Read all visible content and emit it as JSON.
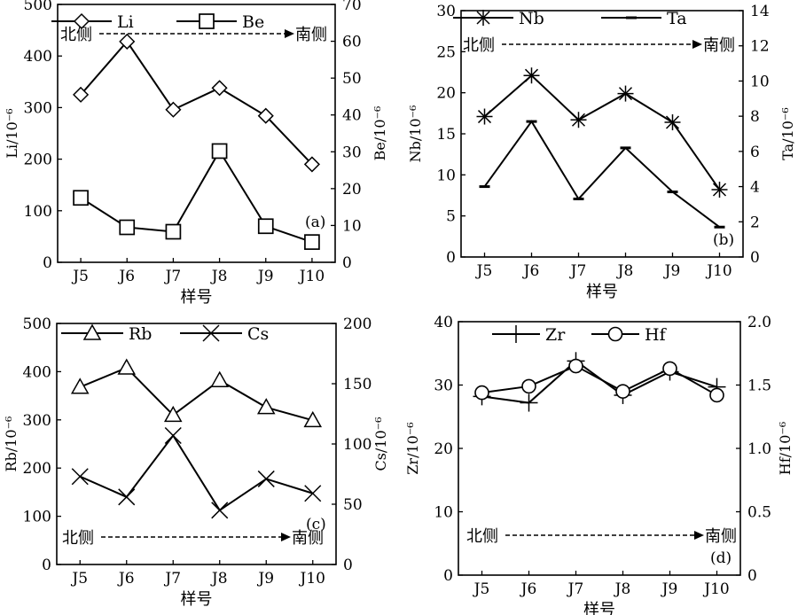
{
  "figure": {
    "x_axis_title": "样号",
    "direction_from": "北侧",
    "direction_to": "南侧"
  },
  "chart_data": [
    {
      "id": "a",
      "type": "line",
      "panel_label": "(a)",
      "categories": [
        "J5",
        "J6",
        "J7",
        "J8",
        "J9",
        "J10"
      ],
      "xlabel": "样号",
      "ylabel_left": "Li/10⁻⁶",
      "ylabel_right": "Be/10⁻⁶",
      "ylim_left": [
        0,
        500
      ],
      "yticks_left": [
        0,
        100,
        200,
        300,
        400,
        500
      ],
      "ylim_right": [
        0,
        70
      ],
      "yticks_right": [
        0,
        10,
        20,
        30,
        40,
        50,
        60,
        70
      ],
      "series": [
        {
          "name": "Li",
          "axis": "left",
          "marker": "diamond",
          "values": [
            325,
            428,
            296,
            338,
            284,
            190
          ]
        },
        {
          "name": "Be",
          "axis": "right",
          "marker": "square",
          "values": [
            17.5,
            9.5,
            8.3,
            30.2,
            9.8,
            5.5
          ]
        }
      ]
    },
    {
      "id": "b",
      "type": "line",
      "panel_label": "(b)",
      "categories": [
        "J5",
        "J6",
        "J7",
        "J8",
        "J9",
        "J10"
      ],
      "xlabel": "样号",
      "ylabel_left": "Nb/10⁻⁶",
      "ylabel_right": "Ta/10⁻⁶",
      "ylim_left": [
        0,
        30
      ],
      "yticks_left": [
        0,
        5,
        10,
        15,
        20,
        25,
        30
      ],
      "ylim_right": [
        0,
        14
      ],
      "yticks_right": [
        0,
        2,
        4,
        6,
        8,
        10,
        12,
        14
      ],
      "series": [
        {
          "name": "Nb",
          "axis": "left",
          "marker": "asterisk",
          "values": [
            17.1,
            22.1,
            16.7,
            19.9,
            16.4,
            8.2
          ]
        },
        {
          "name": "Ta",
          "axis": "right",
          "marker": "dash",
          "values": [
            4.0,
            7.7,
            3.3,
            6.2,
            3.7,
            1.7
          ]
        }
      ]
    },
    {
      "id": "c",
      "type": "line",
      "panel_label": "(c)",
      "categories": [
        "J5",
        "J6",
        "J7",
        "J8",
        "J9",
        "J10"
      ],
      "xlabel": "样号",
      "ylabel_left": "Rb/10⁻⁶",
      "ylabel_right": "Cs/10⁻⁶",
      "ylim_left": [
        0,
        500
      ],
      "yticks_left": [
        0,
        100,
        200,
        300,
        400,
        500
      ],
      "ylim_right": [
        0,
        200
      ],
      "yticks_right": [
        0,
        50,
        100,
        150,
        200
      ],
      "series": [
        {
          "name": "Rb",
          "axis": "left",
          "marker": "triangle",
          "values": [
            368,
            408,
            310,
            382,
            326,
            299
          ]
        },
        {
          "name": "Cs",
          "axis": "right",
          "marker": "x",
          "values": [
            73,
            56,
            107,
            45,
            71,
            59
          ]
        }
      ]
    },
    {
      "id": "d",
      "type": "line",
      "panel_label": "(d)",
      "categories": [
        "J5",
        "J6",
        "J7",
        "J8",
        "J9",
        "J10"
      ],
      "xlabel": "样号",
      "ylabel_left": "Zr/10⁻⁶",
      "ylabel_right": "Hf/10⁻⁶",
      "ylim_left": [
        0,
        40
      ],
      "yticks_left": [
        0,
        10,
        20,
        30,
        40
      ],
      "ylim_right": [
        0,
        2.0
      ],
      "yticks_right": [
        "0",
        "0.5",
        "1.0",
        "1.5",
        "2.0"
      ],
      "series": [
        {
          "name": "Zr",
          "axis": "left",
          "marker": "plus",
          "values": [
            28.2,
            27.2,
            33.8,
            28.4,
            32.1,
            29.7
          ]
        },
        {
          "name": "Hf",
          "axis": "right",
          "marker": "circle",
          "values": [
            1.44,
            1.49,
            1.65,
            1.45,
            1.63,
            1.42
          ]
        }
      ]
    }
  ]
}
